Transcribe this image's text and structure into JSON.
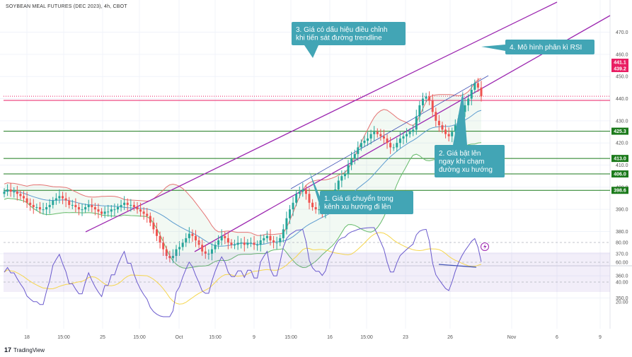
{
  "header": {
    "title": "SOYBEAN MEAL FUTURES (DEC 2023), 4h, CBOT"
  },
  "footer": {
    "brand": "TradingView",
    "brand_mark": "17"
  },
  "colors": {
    "up": "#26a69a",
    "down": "#ef5350",
    "channel": "#9c27b0",
    "support": "#1b7a1b",
    "resistance": "#e91e63",
    "rsi": "#6a5acd",
    "rsi_ma": "#f5d64e",
    "callout": "#42a5b5",
    "bb_upper": "#e57373",
    "bb_lower": "#66bb6a",
    "bb_basis": "#5c9ccf"
  },
  "chart_data": {
    "type": "candlestick",
    "title": "SOYBEAN MEAL FUTURES (DEC 2023), 4h, CBOT",
    "price_axis": {
      "ylim": [
        340,
        472
      ],
      "ticks": [
        350,
        360,
        370,
        380,
        390,
        400,
        410,
        420,
        430,
        440,
        450,
        460,
        470
      ]
    },
    "time_axis": {
      "labels": [
        "18",
        "15:00",
        "25",
        "15:00",
        "Oct",
        "15:00",
        "9",
        "15:00",
        "16",
        "15:00",
        "23",
        "26",
        "Nov",
        "6",
        "9"
      ]
    },
    "price_tags": [
      {
        "label": "441.1",
        "value": 441.1,
        "color": "#e91e63"
      },
      {
        "label": "439.2",
        "value": 439.2,
        "color": "#e91e63"
      },
      {
        "label": "425.3",
        "value": 425.3,
        "color": "#1b7a1b"
      },
      {
        "label": "413.0",
        "value": 413.0,
        "color": "#1b7a1b"
      },
      {
        "label": "406.0",
        "value": 406.0,
        "color": "#1b7a1b"
      },
      {
        "label": "398.6",
        "value": 398.6,
        "color": "#1b7a1b"
      }
    ],
    "horizontal_levels": [
      {
        "value": 441.1,
        "color": "#e91e63",
        "style": "dotted"
      },
      {
        "value": 439.2,
        "color": "#e91e63",
        "style": "solid"
      },
      {
        "value": 425.3,
        "color": "#1b7a1b",
        "style": "solid"
      },
      {
        "value": 413.0,
        "color": "#1b7a1b",
        "style": "solid"
      },
      {
        "value": 406.0,
        "color": "#1b7a1b",
        "style": "solid"
      },
      {
        "value": 398.6,
        "color": "#1b7a1b",
        "style": "solid"
      }
    ],
    "close_series": [
      398,
      399,
      398,
      398,
      397,
      396,
      395,
      393,
      392,
      391,
      391,
      390,
      390,
      391,
      392,
      394,
      395,
      396,
      395,
      394,
      392,
      392,
      391,
      390,
      390,
      391,
      392,
      391,
      390,
      389,
      388,
      389,
      389,
      390,
      390,
      391,
      392,
      393,
      392,
      392,
      391,
      390,
      389,
      388,
      387,
      384,
      381,
      378,
      375,
      372,
      369,
      368,
      369,
      372,
      373,
      375,
      377,
      379,
      378,
      376,
      374,
      371,
      370,
      370,
      372,
      374,
      376,
      378,
      377,
      375,
      374,
      374,
      375,
      375,
      374,
      375,
      375,
      374,
      374,
      376,
      377,
      378,
      376,
      375,
      375,
      377,
      381,
      386,
      390,
      393,
      397,
      398,
      399,
      397,
      393,
      391,
      390,
      390,
      389,
      390,
      393,
      395,
      399,
      403,
      405,
      406,
      410,
      413,
      415,
      418,
      420,
      421,
      422,
      424,
      425,
      424,
      423,
      422,
      420,
      418,
      418,
      420,
      422,
      423,
      424,
      425,
      426,
      432,
      437,
      440,
      441,
      439,
      434,
      430,
      428,
      426,
      424,
      423,
      425,
      428,
      431,
      434,
      437,
      440,
      444,
      447,
      445,
      441
    ],
    "rsi_panel": {
      "levels": [
        80,
        60,
        40
      ],
      "band": [
        30,
        70
      ],
      "ticks": [
        20,
        40,
        60,
        80
      ]
    },
    "annotations": [
      {
        "id": 1,
        "text_line1": "1. Giá di chuyển trong",
        "text_line2": "kênh xu hướng đi lên"
      },
      {
        "id": 2,
        "text_line1": "2. Giá bật lên",
        "text_line2": "ngay khi chạm",
        "text_line3": "đường xu hướng"
      },
      {
        "id": 3,
        "text_line1": "3. Giá có dấu hiệu điều chỉnh",
        "text_line2": "khi tiến sát đường trendline"
      },
      {
        "id": 4,
        "text_line1": "4. Mô hình phân kì RSI"
      }
    ]
  }
}
